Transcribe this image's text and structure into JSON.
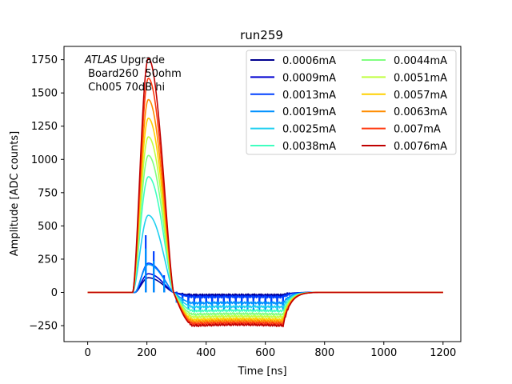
{
  "chart_data": {
    "type": "line",
    "title": "run259",
    "xlabel": "Time [ns]",
    "ylabel": "Amplitude [ADC counts]",
    "xlim": [
      -80,
      1260
    ],
    "ylim": [
      -370,
      1850
    ],
    "xticks": [
      0,
      200,
      400,
      600,
      800,
      1000,
      1200
    ],
    "yticks": [
      -250,
      0,
      250,
      500,
      750,
      1000,
      1250,
      1500,
      1750
    ],
    "grid": false,
    "legend_placement": "top-right",
    "legend_columns": 2,
    "annotation": {
      "italic_part": "ATLAS",
      "rest_part": " Upgrade",
      "line2": " Board260  50ohm",
      "line3": " Ch005 70dB hi"
    },
    "series": [
      {
        "name": "0.0006mA",
        "color": "#00008f",
        "peak": 110,
        "undershoot": -20,
        "mode": "spiky",
        "spike": 150
      },
      {
        "name": "0.0009mA",
        "color": "#0000d0",
        "peak": 140,
        "undershoot": -30,
        "mode": "spiky",
        "spike": 200
      },
      {
        "name": "0.0013mA",
        "color": "#0040ff",
        "peak": 220,
        "undershoot": -35,
        "mode": "spiky",
        "spike": 430
      },
      {
        "name": "0.0019mA",
        "color": "#0090ff",
        "peak": 210,
        "undershoot": -80,
        "mode": "spiky",
        "spike": 330
      },
      {
        "name": "0.0025mA",
        "color": "#20d0f0",
        "peak": 580,
        "undershoot": -110,
        "mode": "smooth"
      },
      {
        "name": "0.0038mA",
        "color": "#40ffc0",
        "peak": 870,
        "undershoot": -140,
        "mode": "smooth"
      },
      {
        "name": "0.0044mA",
        "color": "#80ff80",
        "peak": 1030,
        "undershoot": -165,
        "mode": "smooth"
      },
      {
        "name": "0.0051mA",
        "color": "#c0ff40",
        "peak": 1170,
        "undershoot": -185,
        "mode": "smooth"
      },
      {
        "name": "0.0057mA",
        "color": "#ffd000",
        "peak": 1310,
        "undershoot": -205,
        "mode": "smooth"
      },
      {
        "name": "0.0063mA",
        "color": "#ff8c00",
        "peak": 1450,
        "undershoot": -220,
        "mode": "smooth"
      },
      {
        "name": "0.007mA",
        "color": "#ff3a10",
        "peak": 1610,
        "undershoot": -235,
        "mode": "smooth"
      },
      {
        "name": "0.0076mA",
        "color": "#c00000",
        "peak": 1760,
        "undershoot": -250,
        "mode": "smooth"
      }
    ]
  }
}
